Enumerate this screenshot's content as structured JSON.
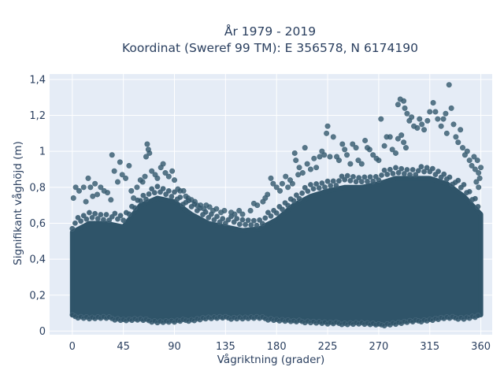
{
  "chart_data": {
    "type": "scatter",
    "title_lines": [
      "År 1979 - 2019",
      "Koordinat (Sweref 99 TM): E 356578, N 6174190"
    ],
    "xlabel": "Vågriktning (grader)",
    "ylabel": "Signifikant våghöjd (m)",
    "xlim": [
      -20,
      370
    ],
    "ylim": [
      -0.02,
      1.43
    ],
    "x_ticks": [
      0,
      45,
      90,
      135,
      180,
      225,
      270,
      315,
      360
    ],
    "x_tick_labels": [
      "0",
      "45",
      "90",
      "135",
      "180",
      "225",
      "270",
      "315",
      "360"
    ],
    "y_ticks": [
      0,
      0.2,
      0.4,
      0.6,
      0.8,
      1.0,
      1.2,
      1.4
    ],
    "y_tick_labels": [
      "0",
      "0,2",
      "0,4",
      "0,6",
      "0,8",
      "1",
      "1,2",
      "1,4"
    ],
    "grid": true,
    "legend": false,
    "colors": {
      "background": "#e5ecf6",
      "grid": "#ffffff",
      "marker": "#2f5469",
      "marker_outline": "#4a6b7f"
    },
    "bulk_band": {
      "x": [
        0,
        15,
        30,
        45,
        60,
        75,
        90,
        105,
        120,
        135,
        150,
        165,
        180,
        195,
        210,
        225,
        240,
        255,
        270,
        285,
        300,
        315,
        330,
        345,
        360
      ],
      "low": [
        0.09,
        0.08,
        0.08,
        0.07,
        0.07,
        0.06,
        0.06,
        0.07,
        0.08,
        0.08,
        0.08,
        0.08,
        0.07,
        0.06,
        0.06,
        0.05,
        0.05,
        0.05,
        0.04,
        0.05,
        0.06,
        0.07,
        0.08,
        0.08,
        0.09
      ],
      "high": [
        0.55,
        0.6,
        0.6,
        0.58,
        0.7,
        0.74,
        0.72,
        0.65,
        0.6,
        0.58,
        0.56,
        0.57,
        0.62,
        0.7,
        0.75,
        0.78,
        0.8,
        0.8,
        0.82,
        0.85,
        0.85,
        0.85,
        0.82,
        0.75,
        0.65
      ]
    },
    "outliers": [
      [
        1,
        0.74
      ],
      [
        3,
        0.8
      ],
      [
        6,
        0.78
      ],
      [
        10,
        0.8
      ],
      [
        12,
        0.72
      ],
      [
        14,
        0.85
      ],
      [
        16,
        0.8
      ],
      [
        18,
        0.75
      ],
      [
        20,
        0.82
      ],
      [
        22,
        0.76
      ],
      [
        25,
        0.8
      ],
      [
        28,
        0.78
      ],
      [
        31,
        0.77
      ],
      [
        34,
        0.73
      ],
      [
        35,
        0.98
      ],
      [
        37,
        0.89
      ],
      [
        40,
        0.83
      ],
      [
        42,
        0.94
      ],
      [
        44,
        0.87
      ],
      [
        47,
        0.85
      ],
      [
        50,
        0.92
      ],
      [
        52,
        0.78
      ],
      [
        54,
        0.74
      ],
      [
        57,
        0.8
      ],
      [
        60,
        0.84
      ],
      [
        62,
        0.83
      ],
      [
        64,
        0.86
      ],
      [
        65,
        0.97
      ],
      [
        66,
        1.04
      ],
      [
        67,
        1.01
      ],
      [
        68,
        0.99
      ],
      [
        70,
        0.89
      ],
      [
        73,
        0.87
      ],
      [
        75,
        0.85
      ],
      [
        78,
        0.91
      ],
      [
        80,
        0.93
      ],
      [
        82,
        0.88
      ],
      [
        85,
        0.86
      ],
      [
        88,
        0.89
      ],
      [
        90,
        0.84
      ],
      [
        93,
        0.79
      ],
      [
        95,
        0.78
      ],
      [
        98,
        0.78
      ],
      [
        100,
        0.75
      ],
      [
        102,
        0.74
      ],
      [
        105,
        0.73
      ],
      [
        108,
        0.72
      ],
      [
        110,
        0.7
      ],
      [
        113,
        0.7
      ],
      [
        116,
        0.68
      ],
      [
        118,
        0.7
      ],
      [
        121,
        0.69
      ],
      [
        124,
        0.67
      ],
      [
        127,
        0.68
      ],
      [
        131,
        0.66
      ],
      [
        134,
        0.67
      ],
      [
        140,
        0.66
      ],
      [
        143,
        0.65
      ],
      [
        147,
        0.67
      ],
      [
        150,
        0.65
      ],
      [
        157,
        0.67
      ],
      [
        160,
        0.71
      ],
      [
        163,
        0.7
      ],
      [
        168,
        0.72
      ],
      [
        170,
        0.74
      ],
      [
        172,
        0.76
      ],
      [
        175,
        0.85
      ],
      [
        177,
        0.82
      ],
      [
        180,
        0.8
      ],
      [
        183,
        0.78
      ],
      [
        185,
        0.82
      ],
      [
        188,
        0.86
      ],
      [
        190,
        0.8
      ],
      [
        192,
        0.84
      ],
      [
        194,
        0.82
      ],
      [
        196,
        0.99
      ],
      [
        197,
        0.95
      ],
      [
        199,
        0.87
      ],
      [
        200,
        0.91
      ],
      [
        203,
        0.88
      ],
      [
        205,
        1.02
      ],
      [
        207,
        0.93
      ],
      [
        210,
        0.9
      ],
      [
        213,
        0.96
      ],
      [
        215,
        0.91
      ],
      [
        218,
        0.97
      ],
      [
        220,
        1.0
      ],
      [
        222,
        0.98
      ],
      [
        224,
        1.1
      ],
      [
        225,
        1.14
      ],
      [
        227,
        0.97
      ],
      [
        230,
        1.08
      ],
      [
        233,
        0.97
      ],
      [
        235,
        0.95
      ],
      [
        238,
        1.04
      ],
      [
        240,
        1.01
      ],
      [
        242,
        0.98
      ],
      [
        245,
        0.93
      ],
      [
        247,
        1.04
      ],
      [
        250,
        1.02
      ],
      [
        252,
        0.95
      ],
      [
        255,
        0.93
      ],
      [
        258,
        1.06
      ],
      [
        260,
        1.02
      ],
      [
        262,
        1.01
      ],
      [
        265,
        0.98
      ],
      [
        268,
        0.96
      ],
      [
        270,
        0.95
      ],
      [
        272,
        1.18
      ],
      [
        275,
        1.03
      ],
      [
        277,
        1.08
      ],
      [
        280,
        1.08
      ],
      [
        282,
        1.01
      ],
      [
        285,
        0.99
      ],
      [
        287,
        1.07
      ],
      [
        290,
        1.09
      ],
      [
        292,
        1.05
      ],
      [
        294,
        1.02
      ],
      [
        287,
        1.26
      ],
      [
        289,
        1.29
      ],
      [
        292,
        1.28
      ],
      [
        293,
        1.24
      ],
      [
        295,
        1.21
      ],
      [
        297,
        1.17
      ],
      [
        299,
        1.19
      ],
      [
        301,
        1.14
      ],
      [
        304,
        1.13
      ],
      [
        306,
        1.18
      ],
      [
        308,
        1.15
      ],
      [
        310,
        1.12
      ],
      [
        313,
        1.17
      ],
      [
        315,
        1.22
      ],
      [
        318,
        1.27
      ],
      [
        320,
        1.22
      ],
      [
        322,
        1.18
      ],
      [
        325,
        1.14
      ],
      [
        327,
        1.18
      ],
      [
        329,
        1.21
      ],
      [
        330,
        1.1
      ],
      [
        332,
        1.37
      ],
      [
        334,
        1.24
      ],
      [
        336,
        1.15
      ],
      [
        338,
        1.08
      ],
      [
        340,
        1.05
      ],
      [
        342,
        1.12
      ],
      [
        344,
        1.02
      ],
      [
        346,
        0.98
      ],
      [
        348,
        1.0
      ],
      [
        350,
        0.95
      ],
      [
        352,
        0.92
      ],
      [
        354,
        0.97
      ],
      [
        355,
        0.9
      ],
      [
        357,
        0.95
      ],
      [
        358,
        0.88
      ],
      [
        359,
        0.85
      ],
      [
        360,
        0.91
      ],
      [
        358,
        0.8
      ],
      [
        356,
        0.83
      ]
    ]
  }
}
